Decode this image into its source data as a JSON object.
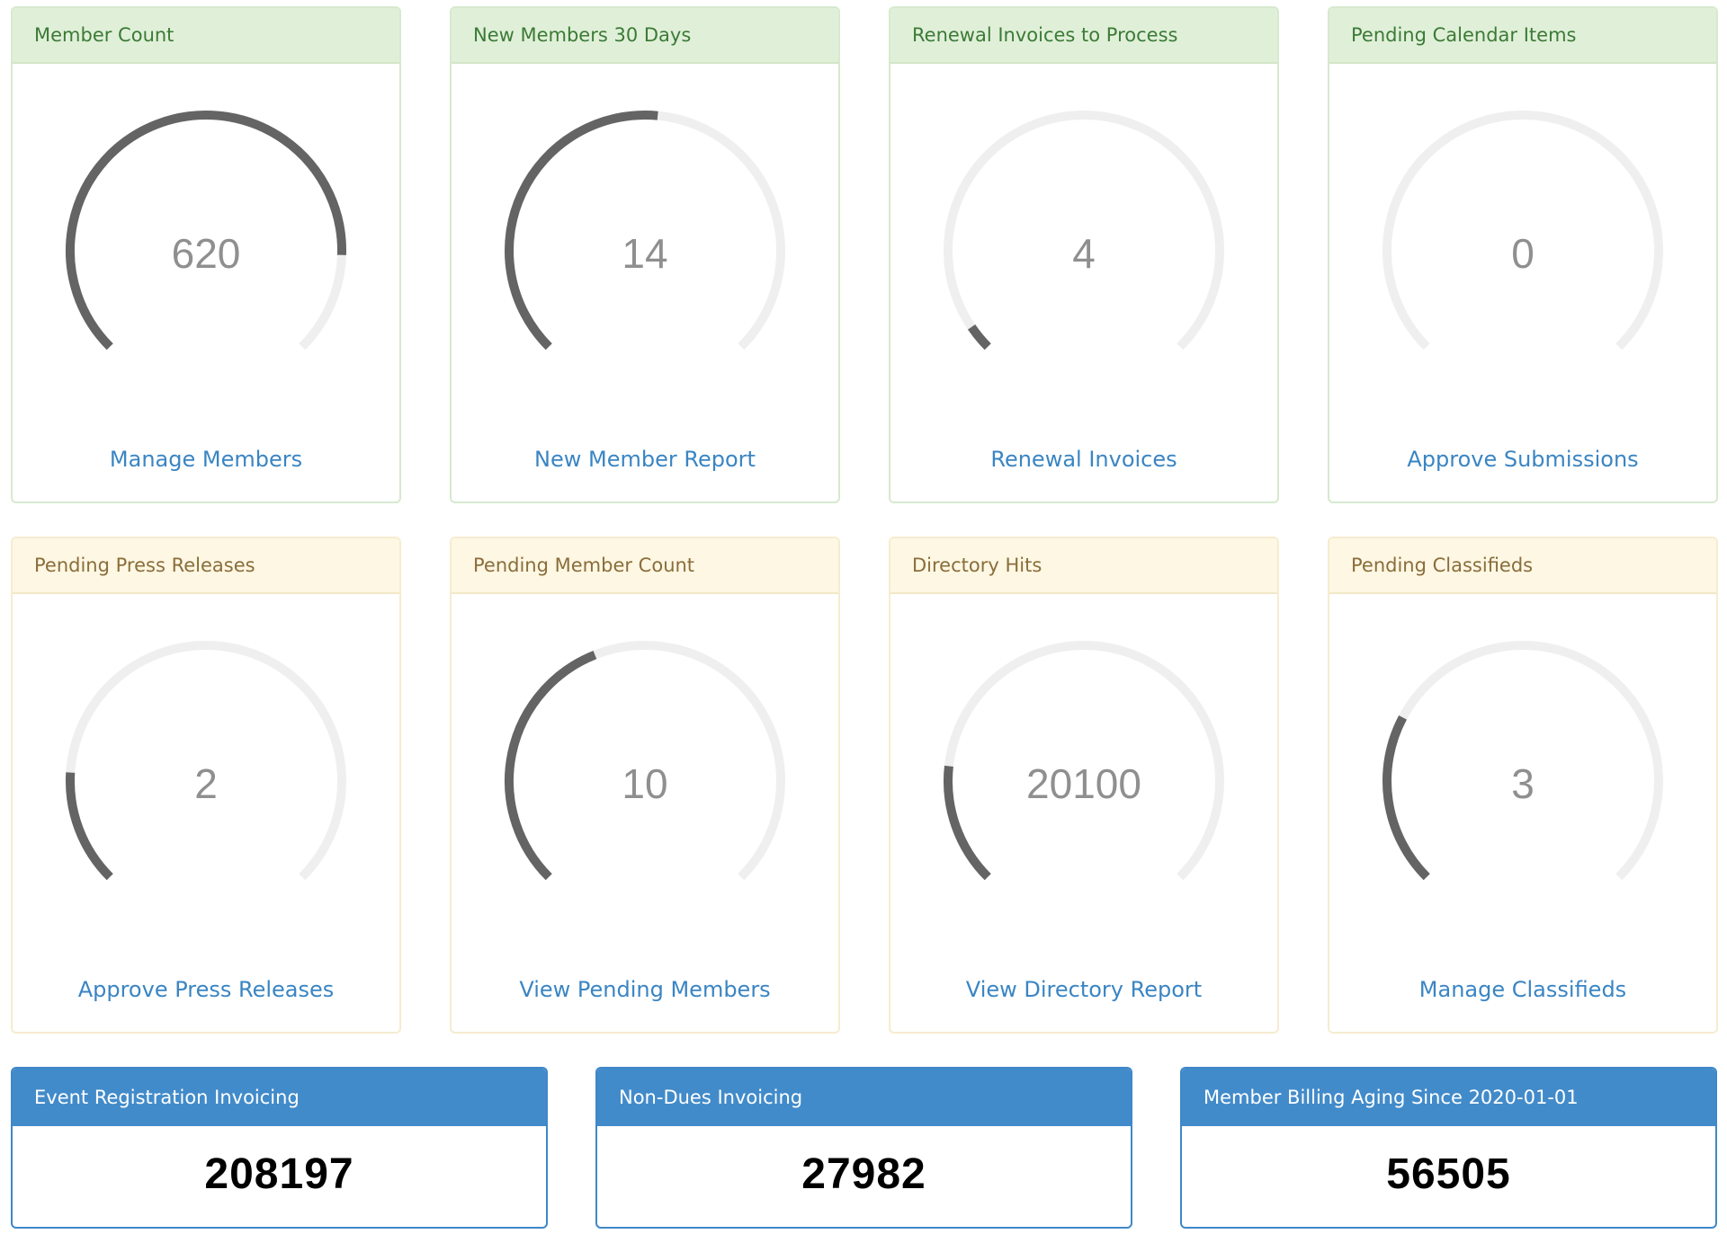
{
  "gauges": [
    {
      "title": "Member Count",
      "value": "620",
      "fraction": 0.84,
      "link": "Manage Members",
      "theme": "green"
    },
    {
      "title": "New Members 30 Days",
      "value": "14",
      "fraction": 0.52,
      "link": "New Member Report",
      "theme": "green"
    },
    {
      "title": "Renewal Invoices to Process",
      "value": "4",
      "fraction": 0.04,
      "link": "Renewal Invoices",
      "theme": "green"
    },
    {
      "title": "Pending Calendar Items",
      "value": "0",
      "fraction": 0.0,
      "link": "Approve Submissions",
      "theme": "green"
    },
    {
      "title": "Pending Press Releases",
      "value": "2",
      "fraction": 0.18,
      "link": "Approve Press Releases",
      "theme": "yellow"
    },
    {
      "title": "Pending Member Count",
      "value": "10",
      "fraction": 0.42,
      "link": "View Pending Members",
      "theme": "yellow"
    },
    {
      "title": "Directory Hits",
      "value": "20100",
      "fraction": 0.19,
      "link": "View Directory Report",
      "theme": "yellow"
    },
    {
      "title": "Pending Classifieds",
      "value": "3",
      "fraction": 0.27,
      "link": "Manage Classifieds",
      "theme": "yellow"
    }
  ],
  "stats": [
    {
      "title": "Event Registration Invoicing",
      "value": "208197"
    },
    {
      "title": "Non-Dues Invoicing",
      "value": "27982"
    },
    {
      "title": "Member Billing Aging Since 2020-01-01",
      "value": "56505"
    }
  ],
  "colors": {
    "gauge_track": "#efefef",
    "gauge_fill": "#646464",
    "link": "#3a85c3",
    "stat_header": "#428bca"
  }
}
